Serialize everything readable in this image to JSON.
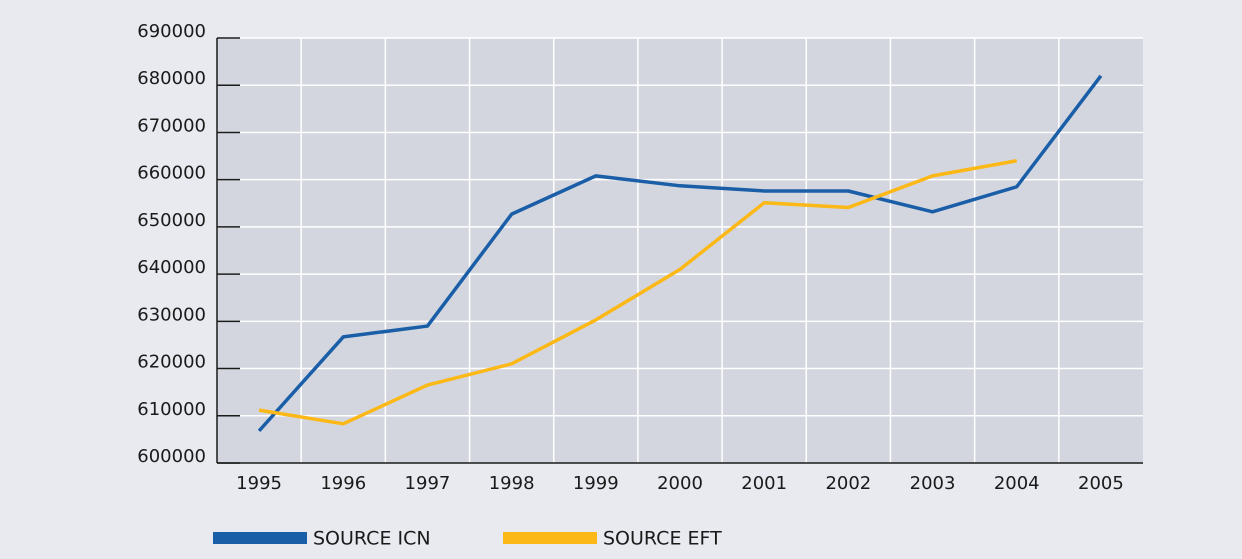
{
  "chart_data": {
    "type": "line",
    "categories": [
      "1995",
      "1996",
      "1997",
      "1998",
      "1999",
      "2000",
      "2001",
      "2002",
      "2003",
      "2004",
      "2005"
    ],
    "series": [
      {
        "name": "SOURCE ICN",
        "color": "#1a5ea8",
        "values": [
          606800,
          626700,
          629000,
          652700,
          660800,
          658700,
          657600,
          657600,
          653200,
          658500,
          682000
        ]
      },
      {
        "name": "SOURCE EFT",
        "color": "#fbb817",
        "values": [
          611200,
          608300,
          616500,
          621000,
          630300,
          641000,
          655100,
          654100,
          660800,
          664000,
          null
        ]
      }
    ],
    "ylim": [
      600000,
      690000
    ],
    "yticks": [
      600000,
      610000,
      620000,
      630000,
      640000,
      650000,
      660000,
      670000,
      680000,
      690000
    ],
    "grid": true
  }
}
